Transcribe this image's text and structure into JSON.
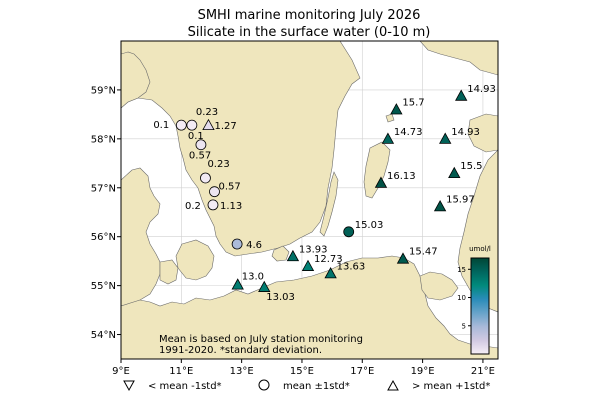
{
  "title_line1": "SMHI marine monitoring July 2026",
  "title_line2": "Silicate in the surface water (0-10 m)",
  "lon_ticks": [
    {
      "lon": 9,
      "label": "9°E"
    },
    {
      "lon": 11,
      "label": "11°E"
    },
    {
      "lon": 13,
      "label": "13°E"
    },
    {
      "lon": 15,
      "label": "15°E"
    },
    {
      "lon": 17,
      "label": "17°E"
    },
    {
      "lon": 19,
      "label": "19°E"
    },
    {
      "lon": 21,
      "label": "21°E"
    }
  ],
  "lat_ticks": [
    {
      "lat": 54,
      "label": "54°N"
    },
    {
      "lat": 55,
      "label": "55°N"
    },
    {
      "lat": 56,
      "label": "56°N"
    },
    {
      "lat": 57,
      "label": "57°N"
    },
    {
      "lat": 58,
      "label": "58°N"
    },
    {
      "lat": 59,
      "label": "59°N"
    }
  ],
  "colors": {
    "land": "#efe6bd",
    "sea": "#ffffff",
    "coast": "#6b6b6b",
    "grid": "#d0d0d0"
  },
  "colorbar": {
    "unit": "umol/l",
    "min": 0,
    "max": 17,
    "ticks": [
      5,
      10,
      15
    ],
    "colors": [
      "#f6eef6",
      "#d1c9e2",
      "#a8b9d9",
      "#67a3c9",
      "#2a8cb9",
      "#018a7c",
      "#01665e",
      "#014636"
    ]
  },
  "note_line1": "Mean is based on July station monitoring",
  "note_line2": "1991-2020. *standard deviation.",
  "legend": [
    {
      "symbol": "triangle-down",
      "label": "< mean -1std*"
    },
    {
      "symbol": "circle",
      "label": "mean ±1std*"
    },
    {
      "symbol": "triangle-up",
      "label": "> mean +1std*"
    }
  ],
  "stations": [
    {
      "lon": 20.28,
      "lat": 58.88,
      "value": 14.93,
      "label": "14.93",
      "class": "high"
    },
    {
      "lon": 18.13,
      "lat": 58.6,
      "value": 15.7,
      "label": "15.7",
      "class": "high"
    },
    {
      "lon": 17.85,
      "lat": 58.0,
      "value": 14.73,
      "label": "14.73",
      "class": "high"
    },
    {
      "lon": 19.75,
      "lat": 58.0,
      "value": 14.93,
      "label": "14.93",
      "class": "high"
    },
    {
      "lon": 20.05,
      "lat": 57.3,
      "value": 15.5,
      "label": "15.5",
      "class": "high"
    },
    {
      "lon": 17.62,
      "lat": 57.1,
      "value": 16.13,
      "label": "16.13",
      "class": "high"
    },
    {
      "lon": 19.58,
      "lat": 56.62,
      "value": 15.97,
      "label": "15.97",
      "class": "high"
    },
    {
      "lon": 16.55,
      "lat": 56.1,
      "value": 15.03,
      "label": "15.03",
      "class": "mean"
    },
    {
      "lon": 18.35,
      "lat": 55.55,
      "value": 15.47,
      "label": "15.47",
      "class": "high"
    },
    {
      "lon": 14.7,
      "lat": 55.6,
      "value": 13.93,
      "label": "13.93",
      "class": "high"
    },
    {
      "lon": 15.2,
      "lat": 55.4,
      "value": 12.73,
      "label": "12.73",
      "class": "high"
    },
    {
      "lon": 15.95,
      "lat": 55.25,
      "value": 13.63,
      "label": "13.63",
      "class": "high"
    },
    {
      "lon": 12.87,
      "lat": 55.02,
      "value": 13.0,
      "label": "13.0",
      "class": "high"
    },
    {
      "lon": 13.75,
      "lat": 54.97,
      "value": 13.03,
      "label": "13.03",
      "class": "high"
    },
    {
      "lon": 12.85,
      "lat": 55.85,
      "value": 4.6,
      "label": "4.6",
      "class": "mean"
    },
    {
      "lon": 11.35,
      "lat": 58.28,
      "value": 0.23,
      "label": "0.23",
      "class": "mean"
    },
    {
      "lon": 11.0,
      "lat": 58.28,
      "value": 0.1,
      "label": "0.1",
      "class": "mean"
    },
    {
      "lon": 11.35,
      "lat": 58.28,
      "value": 0.1,
      "label": "0.1",
      "class": "mean"
    },
    {
      "lon": 11.9,
      "lat": 58.28,
      "value": 1.27,
      "label": "1.27",
      "class": "high"
    },
    {
      "lon": 11.65,
      "lat": 57.88,
      "value": 0.57,
      "label": "0.57",
      "class": "mean"
    },
    {
      "lon": 11.8,
      "lat": 57.2,
      "value": 0.23,
      "label": "0.23",
      "class": "mean"
    },
    {
      "lon": 12.1,
      "lat": 56.92,
      "value": 0.57,
      "label": "0.57",
      "class": "mean"
    },
    {
      "lon": 12.05,
      "lat": 56.65,
      "value": 0.2,
      "label": "0.2",
      "class": "mean"
    },
    {
      "lon": 12.05,
      "lat": 56.65,
      "value": 1.13,
      "label": "1.13",
      "class": "mean"
    }
  ]
}
